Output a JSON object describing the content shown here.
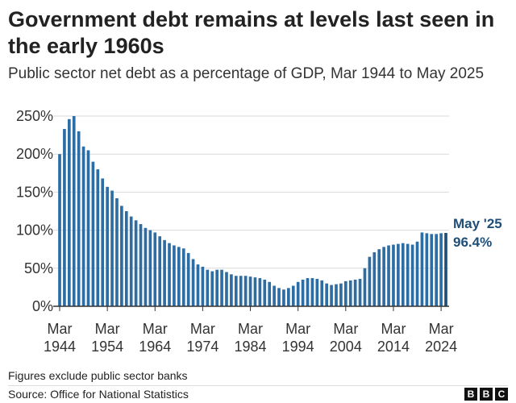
{
  "title": "Government debt remains at levels last seen in the early 1960s",
  "subtitle": "Public sector net debt as a percentage of GDP, Mar 1944 to May 2025",
  "note": "Figures exclude public sector banks",
  "source": "Source: Office for National Statistics",
  "logo": [
    "B",
    "B",
    "C"
  ],
  "colors": {
    "bar": "#2e6da4",
    "highlight": "#1f4e79",
    "grid": "#d9d9d9",
    "axis": "#333333"
  },
  "chart_data": {
    "type": "bar",
    "title": "Government debt remains at levels last seen in the early 1960s",
    "subtitle": "Public sector net debt as a percentage of GDP, Mar 1944 to May 2025",
    "xlabel": "",
    "ylabel": "",
    "ylim": [
      0,
      250
    ],
    "yticks": [
      0,
      50,
      100,
      150,
      200,
      250
    ],
    "ytick_labels": [
      "0%",
      "50%",
      "100%",
      "150%",
      "200%",
      "250%"
    ],
    "xtick_labels": [
      {
        "year": 1944,
        "top": "Mar",
        "bottom": "1944"
      },
      {
        "year": 1954,
        "top": "Mar",
        "bottom": "1954"
      },
      {
        "year": 1964,
        "top": "Mar",
        "bottom": "1964"
      },
      {
        "year": 1974,
        "top": "Mar",
        "bottom": "1974"
      },
      {
        "year": 1984,
        "top": "Mar",
        "bottom": "1984"
      },
      {
        "year": 1994,
        "top": "Mar",
        "bottom": "1994"
      },
      {
        "year": 2004,
        "top": "Mar",
        "bottom": "2004"
      },
      {
        "year": 2014,
        "top": "Mar",
        "bottom": "2014"
      },
      {
        "year": 2024,
        "top": "Mar",
        "bottom": "2024"
      }
    ],
    "categories": [
      1944,
      1945,
      1946,
      1947,
      1948,
      1949,
      1950,
      1951,
      1952,
      1953,
      1954,
      1955,
      1956,
      1957,
      1958,
      1959,
      1960,
      1961,
      1962,
      1963,
      1964,
      1965,
      1966,
      1967,
      1968,
      1969,
      1970,
      1971,
      1972,
      1973,
      1974,
      1975,
      1976,
      1977,
      1978,
      1979,
      1980,
      1981,
      1982,
      1983,
      1984,
      1985,
      1986,
      1987,
      1988,
      1989,
      1990,
      1991,
      1992,
      1993,
      1994,
      1995,
      1996,
      1997,
      1998,
      1999,
      2000,
      2001,
      2002,
      2003,
      2004,
      2005,
      2006,
      2007,
      2008,
      2009,
      2010,
      2011,
      2012,
      2013,
      2014,
      2015,
      2016,
      2017,
      2018,
      2019,
      2020,
      2021,
      2022,
      2023,
      2024,
      2025
    ],
    "values": [
      200,
      233,
      246,
      250,
      230,
      210,
      205,
      190,
      180,
      168,
      157,
      152,
      142,
      132,
      125,
      118,
      113,
      108,
      103,
      100,
      97,
      92,
      87,
      83,
      80,
      78,
      76,
      70,
      62,
      55,
      52,
      48,
      46,
      48,
      48,
      45,
      42,
      40,
      40,
      40,
      39,
      38,
      37,
      35,
      32,
      27,
      24,
      22,
      24,
      27,
      32,
      35,
      37,
      37,
      36,
      34,
      30,
      28,
      29,
      30,
      33,
      34,
      35,
      36,
      50,
      65,
      71,
      75,
      78,
      80,
      81,
      82,
      83,
      82,
      81,
      85,
      97,
      96,
      95,
      95,
      96,
      96.4
    ],
    "highlight": {
      "label": "May '25",
      "value_label": "96.4%",
      "index": 81
    }
  }
}
